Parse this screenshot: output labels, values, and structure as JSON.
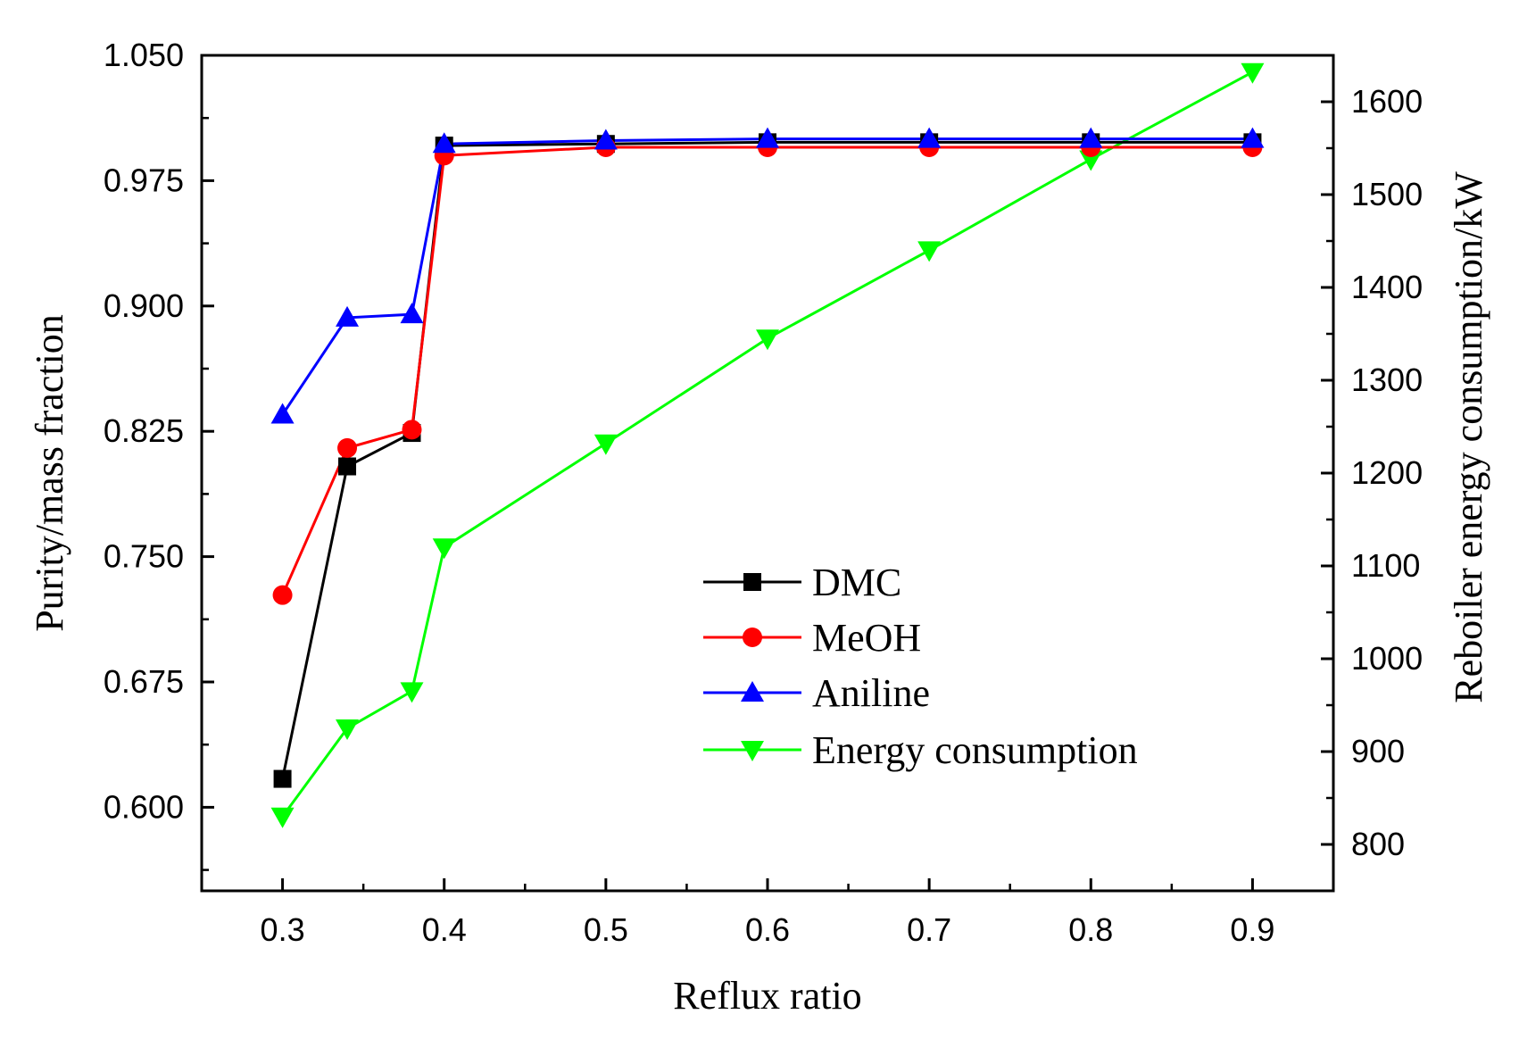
{
  "chart_data": {
    "type": "line",
    "xlabel": "Reflux ratio",
    "ylabel_left": "Purity/mass fraction",
    "ylabel_right": "Reboiler energy consumption/kW",
    "xlim": [
      0.25,
      0.95
    ],
    "ylim_left": [
      0.55,
      1.05
    ],
    "ylim_right": [
      750,
      1650
    ],
    "x_ticks": [
      "0.3",
      "0.4",
      "0.5",
      "0.6",
      "0.7",
      "0.8",
      "0.9"
    ],
    "y_left_ticks": [
      "0.600",
      "0.675",
      "0.750",
      "0.825",
      "0.900",
      "0.975",
      "1.050"
    ],
    "y_right_ticks": [
      "800",
      "900",
      "1000",
      "1100",
      "1200",
      "1300",
      "1400",
      "1500",
      "1600"
    ],
    "series": [
      {
        "name": "DMC",
        "axis": "left",
        "color": "#000000",
        "marker": "square",
        "x": [
          0.3,
          0.34,
          0.38,
          0.4,
          0.5,
          0.6,
          0.7,
          0.8,
          0.9
        ],
        "values": [
          0.617,
          0.804,
          0.824,
          0.996,
          0.997,
          0.998,
          0.998,
          0.998,
          0.998
        ]
      },
      {
        "name": "MeOH",
        "axis": "left",
        "color": "#ff0000",
        "marker": "circle",
        "x": [
          0.3,
          0.34,
          0.38,
          0.4,
          0.5,
          0.6,
          0.7,
          0.8,
          0.9
        ],
        "values": [
          0.727,
          0.815,
          0.826,
          0.99,
          0.995,
          0.995,
          0.995,
          0.995,
          0.995
        ]
      },
      {
        "name": "Aniline",
        "axis": "left",
        "color": "#0000ff",
        "marker": "triangle-up",
        "x": [
          0.3,
          0.34,
          0.38,
          0.4,
          0.5,
          0.6,
          0.7,
          0.8,
          0.9
        ],
        "values": [
          0.835,
          0.893,
          0.895,
          0.997,
          0.999,
          1.0,
          1.0,
          1.0,
          1.0
        ]
      },
      {
        "name": "Energy consumption",
        "axis": "right",
        "color": "#00ff00",
        "marker": "triangle-down",
        "x": [
          0.3,
          0.34,
          0.38,
          0.4,
          0.5,
          0.6,
          0.7,
          0.8,
          0.9
        ],
        "values": [
          830,
          925,
          965,
          1120,
          1232,
          1345,
          1440,
          1538,
          1632
        ]
      }
    ]
  }
}
